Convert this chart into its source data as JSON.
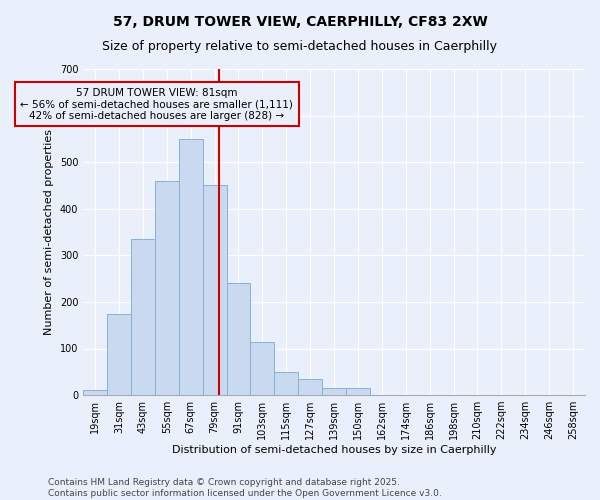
{
  "title1": "57, DRUM TOWER VIEW, CAERPHILLY, CF83 2XW",
  "title2": "Size of property relative to semi-detached houses in Caerphilly",
  "xlabel": "Distribution of semi-detached houses by size in Caerphilly",
  "ylabel": "Number of semi-detached properties",
  "bar_labels": [
    "19sqm",
    "31sqm",
    "43sqm",
    "55sqm",
    "67sqm",
    "79sqm",
    "91sqm",
    "103sqm",
    "115sqm",
    "127sqm",
    "139sqm",
    "150sqm",
    "162sqm",
    "174sqm",
    "186sqm",
    "198sqm",
    "210sqm",
    "222sqm",
    "234sqm",
    "246sqm",
    "258sqm"
  ],
  "bar_values": [
    10,
    175,
    335,
    460,
    550,
    450,
    240,
    115,
    50,
    35,
    15,
    15,
    0,
    0,
    0,
    0,
    0,
    0,
    0,
    0,
    0
  ],
  "bar_color": "#c9d9f0",
  "bar_edgecolor": "#8ab0d8",
  "annotation_line1": "57 DRUM TOWER VIEW: 81sqm",
  "annotation_line2": "← 56% of semi-detached houses are smaller (1,111)",
  "annotation_line3": "42% of semi-detached houses are larger (828) →",
  "vline_color": "#cc0000",
  "vline_x_index": 5.17,
  "box_edgecolor": "#cc0000",
  "ylim": [
    0,
    700
  ],
  "yticks": [
    0,
    100,
    200,
    300,
    400,
    500,
    600,
    700
  ],
  "background_color": "#eaf0fb",
  "grid_color": "#ffffff",
  "footer": "Contains HM Land Registry data © Crown copyright and database right 2025.\nContains public sector information licensed under the Open Government Licence v3.0.",
  "title1_fontsize": 10,
  "title2_fontsize": 9,
  "axis_label_fontsize": 8,
  "tick_fontsize": 7,
  "annotation_fontsize": 7.5,
  "footer_fontsize": 6.5
}
